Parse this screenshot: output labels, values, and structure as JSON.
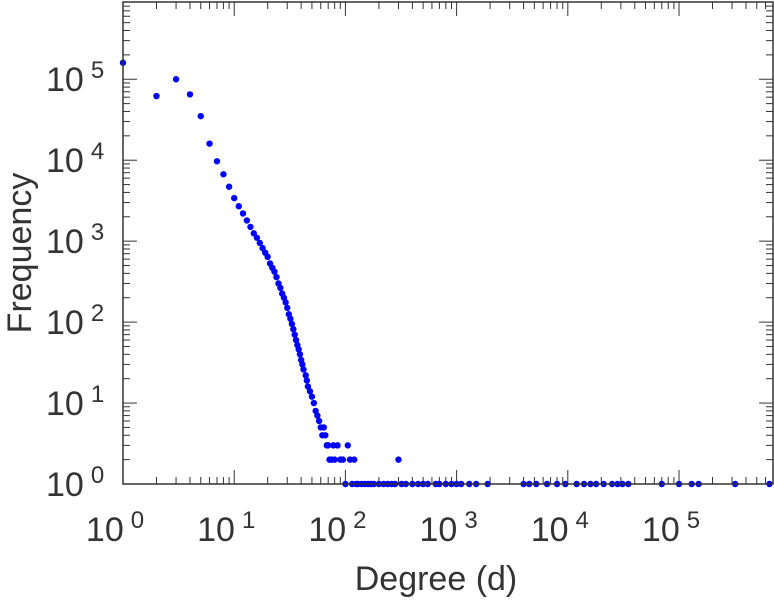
{
  "chart_data": {
    "type": "scatter",
    "title": "",
    "xlabel": "Degree (d)",
    "ylabel": "Frequency",
    "xscale": "log",
    "yscale": "log",
    "xlim": [
      1,
      700000
    ],
    "ylim": [
      1,
      900000
    ],
    "grid": false,
    "legend": "none",
    "marker_color": "#0000ff",
    "x_ticks": [
      {
        "base": "10",
        "exp": "0",
        "value": 1
      },
      {
        "base": "10",
        "exp": "1",
        "value": 10
      },
      {
        "base": "10",
        "exp": "2",
        "value": 100
      },
      {
        "base": "10",
        "exp": "3",
        "value": 1000
      },
      {
        "base": "10",
        "exp": "4",
        "value": 10000
      },
      {
        "base": "10",
        "exp": "5",
        "value": 100000
      }
    ],
    "y_ticks": [
      {
        "base": "10",
        "exp": "0",
        "value": 1
      },
      {
        "base": "10",
        "exp": "1",
        "value": 10
      },
      {
        "base": "10",
        "exp": "2",
        "value": 100
      },
      {
        "base": "10",
        "exp": "3",
        "value": 1000
      },
      {
        "base": "10",
        "exp": "4",
        "value": 10000
      },
      {
        "base": "10",
        "exp": "5",
        "value": 100000
      }
    ],
    "points": [
      [
        1,
        160000
      ],
      [
        2,
        62000
      ],
      [
        3,
        100000
      ],
      [
        4,
        65000
      ],
      [
        5,
        35000
      ],
      [
        6,
        16000
      ],
      [
        7,
        9700
      ],
      [
        8,
        6700
      ],
      [
        9,
        4700
      ],
      [
        10,
        3400
      ],
      [
        11,
        2700
      ],
      [
        12,
        2200
      ],
      [
        13,
        1800
      ],
      [
        14,
        1500
      ],
      [
        15,
        1250
      ],
      [
        16,
        1100
      ],
      [
        17,
        950
      ],
      [
        18,
        820
      ],
      [
        19,
        720
      ],
      [
        20,
        640
      ],
      [
        21,
        530
      ],
      [
        22,
        470
      ],
      [
        23,
        420
      ],
      [
        24,
        360
      ],
      [
        25,
        300
      ],
      [
        26,
        265
      ],
      [
        27,
        225
      ],
      [
        28,
        200
      ],
      [
        29,
        175
      ],
      [
        30,
        150
      ],
      [
        31,
        125
      ],
      [
        32,
        110
      ],
      [
        33,
        95
      ],
      [
        34,
        82
      ],
      [
        35,
        70
      ],
      [
        36,
        60
      ],
      [
        37,
        52
      ],
      [
        38,
        46
      ],
      [
        39,
        40
      ],
      [
        40,
        34
      ],
      [
        41,
        30
      ],
      [
        42,
        26
      ],
      [
        44,
        22
      ],
      [
        45,
        19
      ],
      [
        46,
        16
      ],
      [
        48,
        14
      ],
      [
        50,
        12
      ],
      [
        52,
        10
      ],
      [
        54,
        8
      ],
      [
        56,
        7
      ],
      [
        58,
        6
      ],
      [
        60,
        5
      ],
      [
        62,
        4
      ],
      [
        64,
        5
      ],
      [
        66,
        4
      ],
      [
        68,
        3
      ],
      [
        70,
        3
      ],
      [
        72,
        2
      ],
      [
        75,
        2
      ],
      [
        78,
        3
      ],
      [
        80,
        2
      ],
      [
        85,
        3
      ],
      [
        90,
        2
      ],
      [
        95,
        2
      ],
      [
        100,
        1
      ],
      [
        105,
        3
      ],
      [
        110,
        2
      ],
      [
        115,
        1
      ],
      [
        120,
        2
      ],
      [
        125,
        1
      ],
      [
        130,
        1
      ],
      [
        140,
        1
      ],
      [
        150,
        1
      ],
      [
        160,
        1
      ],
      [
        170,
        1
      ],
      [
        180,
        1
      ],
      [
        200,
        1
      ],
      [
        220,
        1
      ],
      [
        240,
        1
      ],
      [
        260,
        1
      ],
      [
        280,
        1
      ],
      [
        300,
        2
      ],
      [
        320,
        1
      ],
      [
        350,
        1
      ],
      [
        400,
        1
      ],
      [
        450,
        1
      ],
      [
        500,
        1
      ],
      [
        550,
        1
      ],
      [
        650,
        1
      ],
      [
        700,
        1
      ],
      [
        800,
        1
      ],
      [
        900,
        1
      ],
      [
        1000,
        1
      ],
      [
        1100,
        1
      ],
      [
        1300,
        1
      ],
      [
        1500,
        1
      ],
      [
        1900,
        1
      ],
      [
        4000,
        1
      ],
      [
        4500,
        1
      ],
      [
        5200,
        1
      ],
      [
        6500,
        1
      ],
      [
        8000,
        1
      ],
      [
        9500,
        1
      ],
      [
        12000,
        1
      ],
      [
        14000,
        1
      ],
      [
        16000,
        1
      ],
      [
        18000,
        1
      ],
      [
        21000,
        1
      ],
      [
        25000,
        1
      ],
      [
        28000,
        1
      ],
      [
        31000,
        1
      ],
      [
        35000,
        1
      ],
      [
        70000,
        1
      ],
      [
        100000,
        1
      ],
      [
        130000,
        1
      ],
      [
        150000,
        1
      ],
      [
        320000,
        1
      ],
      [
        650000,
        1
      ]
    ]
  }
}
